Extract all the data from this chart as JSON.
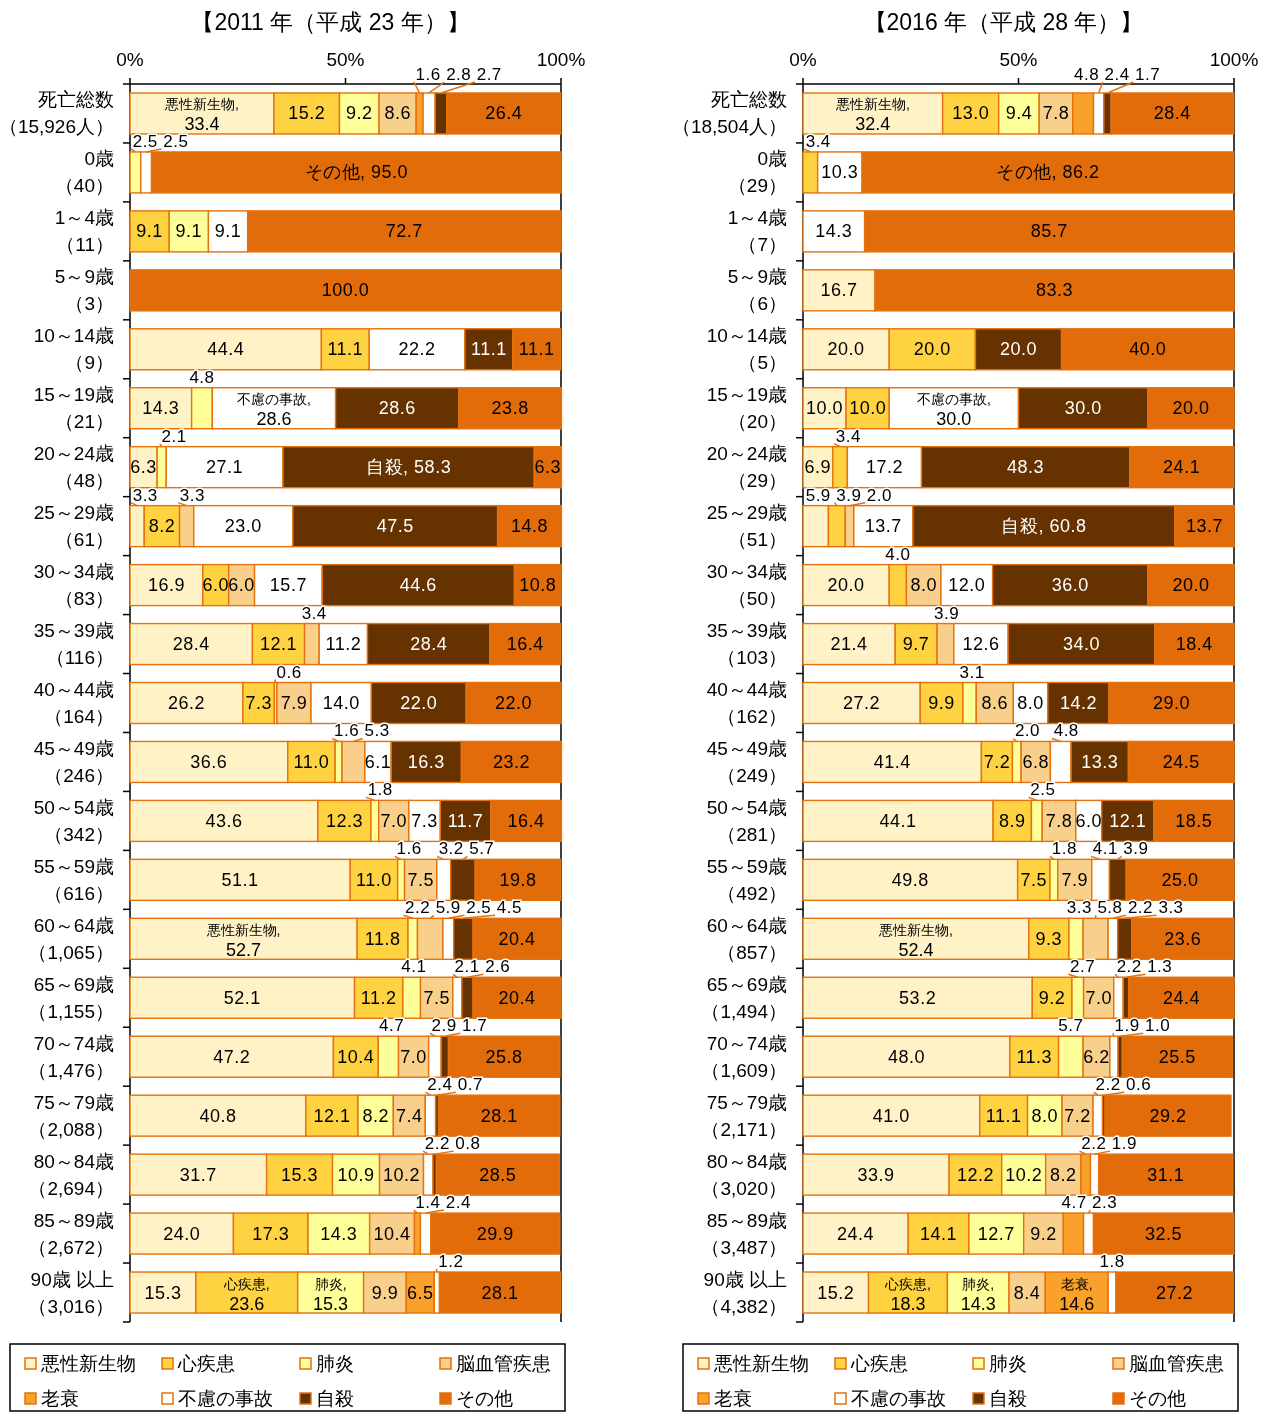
{
  "chart_data": [
    {
      "type": "bar",
      "orientation": "horizontal",
      "stacked": true,
      "title": "【2011 年（平成 23 年）】",
      "xlim": [
        0,
        100
      ],
      "xticks": [
        {
          "value": 0,
          "label": "0%"
        },
        {
          "value": 50,
          "label": "50%"
        },
        {
          "value": 100,
          "label": "100%"
        }
      ],
      "legend": "bottom",
      "categories": [
        "死亡総数（15,926人）",
        "0歳（40）",
        "1～4歳（11）",
        "5～9歳（3）",
        "10～14歳（9）",
        "15～19歳（21）",
        "20～24歳（48）",
        "25～29歳（61）",
        "30～34歳（83）",
        "35～39歳（116）",
        "40～44歳（164）",
        "45～49歳（246）",
        "50～54歳（342）",
        "55～59歳（616）",
        "60～64歳（1,065）",
        "65～69歳（1,155）",
        "70～74歳（1,476）",
        "75～79歳（2,088）",
        "80～84歳（2,694）",
        "85～89歳（2,672）",
        "90歳 以上（3,016）"
      ],
      "series": [
        {
          "name": "悪性新生物",
          "color": "#fff2c6",
          "values": [
            33.4,
            null,
            null,
            null,
            44.4,
            14.3,
            6.3,
            3.3,
            16.9,
            28.4,
            26.2,
            36.6,
            43.6,
            51.1,
            52.7,
            52.1,
            47.2,
            40.8,
            31.7,
            24.0,
            15.3
          ],
          "value_labels": [
            "悪性新生物,\n33.4",
            null,
            null,
            null,
            "44.4",
            "14.3",
            "6.3",
            "3.3",
            "16.9",
            "28.4",
            "26.2",
            "36.6",
            "43.6",
            "51.1",
            "悪性新生物,\n52.7",
            "52.1",
            "47.2",
            "40.8",
            "31.7",
            "24.0",
            "15.3"
          ]
        },
        {
          "name": "心疾患",
          "color": "#ffd242",
          "values": [
            15.2,
            null,
            9.1,
            null,
            11.1,
            null,
            null,
            8.2,
            6.0,
            12.1,
            7.3,
            11.0,
            12.3,
            11.0,
            11.8,
            11.2,
            10.4,
            12.1,
            15.3,
            17.3,
            23.6
          ],
          "value_labels": [
            "15.2",
            null,
            "9.1",
            null,
            "11.1",
            null,
            null,
            "8.2",
            "6.0",
            "12.1",
            "7.3",
            "11.0",
            "12.3",
            "11.0",
            "11.8",
            "11.2",
            "10.4",
            "12.1",
            "15.3",
            "17.3",
            "心疾患,\n23.6"
          ]
        },
        {
          "name": "肺炎",
          "color": "#ffff99",
          "values": [
            9.2,
            2.5,
            9.1,
            null,
            null,
            4.8,
            2.1,
            null,
            null,
            null,
            0.6,
            1.6,
            1.8,
            1.6,
            2.2,
            4.1,
            4.7,
            8.2,
            10.9,
            14.3,
            15.3
          ],
          "value_labels": [
            "9.2",
            "2.5",
            "9.1",
            null,
            null,
            "4.8",
            "2.1",
            null,
            null,
            null,
            "0.6",
            "1.6",
            "1.8",
            "1.6",
            "2.2",
            "4.1",
            "4.7",
            "8.2",
            "10.9",
            "14.3",
            "肺炎,\n15.3"
          ]
        },
        {
          "name": "脳血管疾患",
          "color": "#f8d08c",
          "values": [
            8.6,
            null,
            null,
            null,
            null,
            null,
            null,
            3.3,
            6.0,
            3.4,
            7.9,
            5.3,
            7.0,
            7.5,
            5.9,
            7.5,
            7.0,
            7.4,
            10.2,
            10.4,
            9.9
          ],
          "value_labels": [
            "8.6",
            null,
            null,
            null,
            null,
            null,
            null,
            "3.3",
            "6.0",
            "3.4",
            "7.9",
            "5.3",
            "7.0",
            "7.5",
            "5.9",
            "7.5",
            "7.0",
            "7.4",
            "10.2",
            "10.4",
            "9.9"
          ]
        },
        {
          "name": "老衰",
          "color": "#f9a12a",
          "values": [
            1.6,
            null,
            null,
            null,
            null,
            null,
            null,
            null,
            null,
            null,
            null,
            null,
            null,
            null,
            null,
            null,
            null,
            null,
            null,
            1.4,
            6.5
          ],
          "value_labels": [
            "1.6",
            null,
            null,
            null,
            null,
            null,
            null,
            null,
            null,
            null,
            null,
            null,
            null,
            null,
            null,
            null,
            null,
            null,
            null,
            "1.4",
            "6.5"
          ]
        },
        {
          "name": "不慮の事故",
          "color": "#ffffff",
          "values": [
            2.8,
            2.5,
            9.1,
            null,
            22.2,
            28.6,
            27.1,
            23.0,
            15.7,
            11.2,
            14.0,
            6.1,
            7.3,
            3.2,
            2.5,
            2.1,
            2.9,
            2.4,
            2.2,
            2.4,
            1.2
          ],
          "value_labels": [
            "2.8",
            "2.5",
            "9.1",
            null,
            "22.2",
            "不慮の事故,\n28.6",
            "27.1",
            "23.0",
            "15.7",
            "11.2",
            "14.0",
            "6.1",
            "7.3",
            "3.2",
            "2.5",
            "2.1",
            "2.9",
            "2.4",
            "2.2",
            "2.4",
            "1.2"
          ]
        },
        {
          "name": "自殺",
          "color": "#663300",
          "values": [
            2.7,
            null,
            null,
            null,
            11.1,
            28.6,
            58.3,
            47.5,
            44.6,
            28.4,
            22.0,
            16.3,
            11.7,
            5.7,
            4.5,
            2.6,
            1.7,
            0.7,
            0.8,
            null,
            null
          ],
          "value_labels": [
            "2.7",
            null,
            null,
            null,
            "11.1",
            "28.6",
            "自殺, 58.3",
            "47.5",
            "44.6",
            "28.4",
            "22.0",
            "16.3",
            "11.7",
            "5.7",
            "4.5",
            "2.6",
            "1.7",
            "0.7",
            "0.8",
            null,
            null
          ]
        },
        {
          "name": "その他",
          "color": "#e26b0a",
          "values": [
            26.4,
            95.0,
            72.7,
            100.0,
            11.1,
            23.8,
            6.3,
            14.8,
            10.8,
            16.4,
            22.0,
            23.2,
            16.4,
            19.8,
            20.4,
            20.4,
            25.8,
            28.1,
            28.5,
            29.9,
            28.1
          ],
          "value_labels": [
            "26.4",
            "その他, 95.0",
            "72.7",
            "100.0",
            "11.1",
            "23.8",
            "6.3",
            "14.8",
            "10.8",
            "16.4",
            "22.0",
            "23.2",
            "16.4",
            "19.8",
            "20.4",
            "20.4",
            "25.8",
            "28.1",
            "28.5",
            "29.9",
            "28.1"
          ]
        }
      ]
    },
    {
      "type": "bar",
      "orientation": "horizontal",
      "stacked": true,
      "title": "【2016 年（平成 28 年）】",
      "xlim": [
        0,
        100
      ],
      "xticks": [
        {
          "value": 0,
          "label": "0%"
        },
        {
          "value": 50,
          "label": "50%"
        },
        {
          "value": 100,
          "label": "100%"
        }
      ],
      "legend": "bottom",
      "categories": [
        "死亡総数（18,504人）",
        "0歳（29）",
        "1～4歳（7）",
        "5～9歳（6）",
        "10～14歳（5）",
        "15～19歳（20）",
        "20～24歳（29）",
        "25～29歳（51）",
        "30～34歳（50）",
        "35～39歳（103）",
        "40～44歳（162）",
        "45～49歳（249）",
        "50～54歳（281）",
        "55～59歳（492）",
        "60～64歳（857）",
        "65～69歳（1,494）",
        "70～74歳（1,609）",
        "75～79歳（2,171）",
        "80～84歳（3,020）",
        "85～89歳（3,487）",
        "90歳 以上（4,382）"
      ],
      "series": [
        {
          "name": "悪性新生物",
          "color": "#fff2c6",
          "values": [
            32.4,
            null,
            null,
            16.7,
            20.0,
            10.0,
            6.9,
            5.9,
            20.0,
            21.4,
            27.2,
            41.4,
            44.1,
            49.8,
            52.4,
            53.2,
            48.0,
            41.0,
            33.9,
            24.4,
            15.2
          ],
          "value_labels": [
            "悪性新生物,\n32.4",
            null,
            null,
            "16.7",
            "20.0",
            "10.0",
            "6.9",
            "5.9",
            "20.0",
            "21.4",
            "27.2",
            "41.4",
            "44.1",
            "49.8",
            "悪性新生物,\n52.4",
            "53.2",
            "48.0",
            "41.0",
            "33.9",
            "24.4",
            "15.2"
          ]
        },
        {
          "name": "心疾患",
          "color": "#ffd242",
          "values": [
            13.0,
            3.4,
            null,
            null,
            20.0,
            10.0,
            3.4,
            3.9,
            4.0,
            9.7,
            9.9,
            7.2,
            8.9,
            7.5,
            9.3,
            9.2,
            11.3,
            11.1,
            12.2,
            14.1,
            18.3
          ],
          "value_labels": [
            "13.0",
            "3.4",
            null,
            null,
            "20.0",
            "10.0",
            "3.4",
            "3.9",
            "4.0",
            "9.7",
            "9.9",
            "7.2",
            "8.9",
            "7.5",
            "9.3",
            "9.2",
            "11.3",
            "11.1",
            "12.2",
            "14.1",
            "心疾患,\n18.3"
          ]
        },
        {
          "name": "肺炎",
          "color": "#ffff99",
          "values": [
            9.4,
            null,
            null,
            null,
            null,
            null,
            null,
            null,
            null,
            null,
            3.1,
            2.0,
            2.5,
            1.8,
            3.3,
            2.7,
            5.7,
            8.0,
            10.2,
            12.7,
            14.3
          ],
          "value_labels": [
            "9.4",
            null,
            null,
            null,
            null,
            null,
            null,
            null,
            null,
            null,
            "3.1",
            "2.0",
            "2.5",
            "1.8",
            "3.3",
            "2.7",
            "5.7",
            "8.0",
            "10.2",
            "12.7",
            "肺炎,\n14.3"
          ]
        },
        {
          "name": "脳血管疾患",
          "color": "#f8d08c",
          "values": [
            7.8,
            null,
            null,
            null,
            null,
            null,
            null,
            2.0,
            8.0,
            3.9,
            8.6,
            6.8,
            7.8,
            7.9,
            5.8,
            7.0,
            6.2,
            7.2,
            8.2,
            9.2,
            8.4
          ],
          "value_labels": [
            "7.8",
            null,
            null,
            null,
            null,
            null,
            null,
            "2.0",
            "8.0",
            "3.9",
            "8.6",
            "6.8",
            "7.8",
            "7.9",
            "5.8",
            "7.0",
            "6.2",
            "7.2",
            "8.2",
            "9.2",
            "8.4"
          ]
        },
        {
          "name": "老衰",
          "color": "#f9a12a",
          "values": [
            4.8,
            null,
            null,
            null,
            null,
            null,
            null,
            null,
            null,
            null,
            null,
            null,
            null,
            null,
            null,
            null,
            null,
            null,
            2.2,
            4.7,
            14.6
          ],
          "value_labels": [
            "4.8",
            null,
            null,
            null,
            null,
            null,
            null,
            null,
            null,
            null,
            null,
            null,
            null,
            null,
            null,
            null,
            null,
            null,
            "2.2",
            "4.7",
            "老衰,\n14.6"
          ]
        },
        {
          "name": "不慮の事故",
          "color": "#ffffff",
          "values": [
            2.4,
            10.3,
            14.3,
            null,
            null,
            30.0,
            17.2,
            13.7,
            12.0,
            12.6,
            8.0,
            4.8,
            6.0,
            4.1,
            2.2,
            2.2,
            1.9,
            2.2,
            1.9,
            2.3,
            1.8
          ],
          "value_labels": [
            "2.4",
            "10.3",
            "14.3",
            null,
            null,
            "不慮の事故,\n30.0",
            "17.2",
            "13.7",
            "12.0",
            "12.6",
            "8.0",
            "4.8",
            "6.0",
            "4.1",
            "2.2",
            "2.2",
            "1.9",
            "2.2",
            "1.9",
            "2.3",
            "1.8"
          ]
        },
        {
          "name": "自殺",
          "color": "#663300",
          "values": [
            1.7,
            null,
            null,
            null,
            20.0,
            30.0,
            48.3,
            60.8,
            36.0,
            34.0,
            14.2,
            13.3,
            12.1,
            3.9,
            3.3,
            1.3,
            1.0,
            0.6,
            null,
            null,
            null
          ],
          "value_labels": [
            "1.7",
            null,
            null,
            null,
            "20.0",
            "30.0",
            "48.3",
            "自殺, 60.8",
            "36.0",
            "34.0",
            "14.2",
            "13.3",
            "12.1",
            "3.9",
            "3.3",
            "1.3",
            "1.0",
            "0.6",
            null,
            null,
            null
          ]
        },
        {
          "name": "その他",
          "color": "#e26b0a",
          "values": [
            28.4,
            86.2,
            85.7,
            83.3,
            40.0,
            20.0,
            24.1,
            13.7,
            20.0,
            18.4,
            29.0,
            24.5,
            18.5,
            25.0,
            23.6,
            24.4,
            25.5,
            29.2,
            31.1,
            32.5,
            27.2
          ],
          "value_labels": [
            "28.4",
            "その他, 86.2",
            "85.7",
            "83.3",
            "40.0",
            "20.0",
            "24.1",
            "13.7",
            "20.0",
            "18.4",
            "29.0",
            "24.5",
            "18.5",
            "25.0",
            "23.6",
            "24.4",
            "25.5",
            "29.2",
            "31.1",
            "32.5",
            "27.2"
          ]
        }
      ]
    }
  ]
}
